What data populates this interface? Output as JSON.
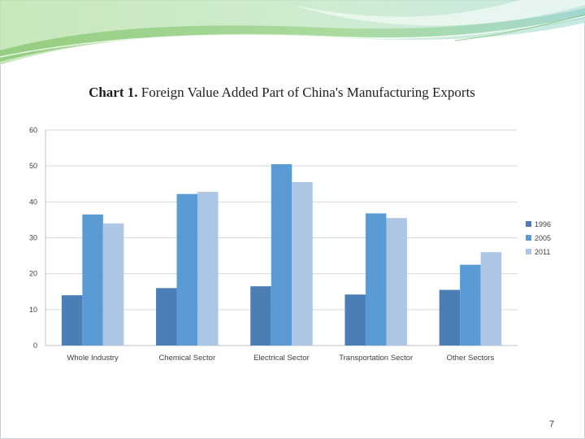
{
  "slide": {
    "title_lead": "Chart 1.",
    "title_rest": " Foreign Value Added Part of China's Manufacturing Exports",
    "page_number": "7"
  },
  "colors": {
    "series": [
      "#4a7eb5",
      "#5b9bd5",
      "#aec6e6"
    ],
    "grid": "#d9d9d9",
    "axis_text": "#404040",
    "banner_green": "#a8d596",
    "banner_teal": "#b8e1dc"
  },
  "chart_data": {
    "type": "bar",
    "title": "",
    "xlabel": "",
    "ylabel": "",
    "ylim": [
      0,
      60
    ],
    "yticks": [
      0,
      10,
      20,
      30,
      40,
      50,
      60
    ],
    "grid": true,
    "legend_position": "right",
    "categories": [
      "Whole Industry",
      "Chemical Sector",
      "Electrical Sector",
      "Transportation Sector",
      "Other Sectors"
    ],
    "series": [
      {
        "name": "1996",
        "values": [
          14,
          16,
          16.5,
          14.2,
          15.5
        ]
      },
      {
        "name": "2005",
        "values": [
          36.5,
          42.2,
          50.5,
          36.8,
          22.5
        ]
      },
      {
        "name": "2011",
        "values": [
          34,
          42.8,
          45.5,
          35.5,
          26
        ]
      }
    ]
  }
}
